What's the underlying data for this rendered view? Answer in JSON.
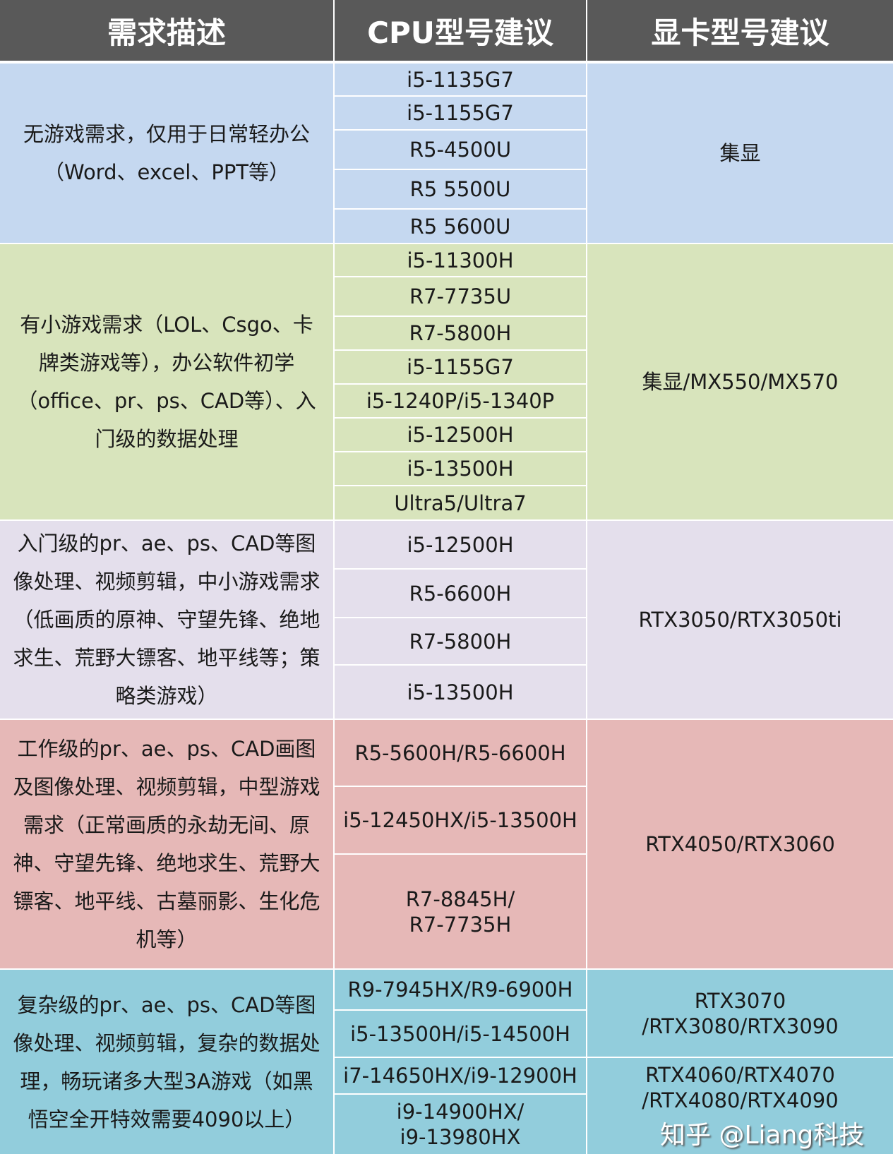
{
  "header": {
    "col1": "需求描述",
    "col2": "CPU型号建议",
    "col3": "显卡型号建议"
  },
  "colors": {
    "header": "#595959",
    "group1": "#c5d8f0",
    "group2": "#d8e4bc",
    "group3": "#e4dfec",
    "group4": "#e6b8b7",
    "group5": "#92cddc"
  },
  "groups": [
    {
      "desc": "无游戏需求，仅用于日常轻办公（Word、excel、PPT等）",
      "cpus": [
        "i5-1135G7",
        "i5-1155G7",
        "R5-4500U",
        "R5 5500U",
        "R5 5600U"
      ],
      "gpus": [
        "集显"
      ]
    },
    {
      "desc": "有小游戏需求（LOL、Csgo、卡牌类游戏等），办公软件初学（office、pr、ps、CAD等）、入门级的数据处理",
      "cpus": [
        "i5-11300H",
        "R7-7735U",
        "R7-5800H",
        "i5-1155G7",
        "i5-1240P/i5-1340P",
        "i5-12500H",
        "i5-13500H",
        "Ultra5/Ultra7"
      ],
      "gpus": [
        "集显/MX550/MX570"
      ]
    },
    {
      "desc": "入门级的pr、ae、ps、CAD等图像处理、视频剪辑，中小游戏需求（低画质的原神、守望先锋、绝地求生、荒野大镖客、地平线等；策略类游戏）",
      "cpus": [
        "i5-12500H",
        "R5-6600H",
        "R7-5800H",
        "i5-13500H"
      ],
      "gpus": [
        "RTX3050/RTX3050ti"
      ]
    },
    {
      "desc": "工作级的pr、ae、ps、CAD画图及图像处理、视频剪辑，中型游戏需求（正常画质的永劫无间、原神、守望先锋、绝地求生、荒野大镖客、地平线、古墓丽影、生化危机等）",
      "cpus": [
        "R5-5600H/R5-6600H",
        "i5-12450HX/i5-13500H",
        "R7-8845H/ R7-7735H"
      ],
      "gpus": [
        "RTX4050/RTX3060"
      ]
    },
    {
      "desc": "复杂级的pr、ae、ps、CAD等图像处理、视频剪辑，复杂的数据处理，畅玩诸多大型3A游戏（如黑悟空全开特效需要4090以上）",
      "cpus": [
        "R9-7945HX/R9-6900H",
        "i5-13500H/i5-14500H",
        "i7-14650HX/i9-12900H",
        "i9-14900HX/ i9-13980HX"
      ],
      "gpus": [
        "RTX3070 /RTX3080/RTX3090",
        "RTX4060/RTX4070 /RTX4080/RTX4090"
      ]
    }
  ],
  "watermark": "知乎 @Liang科技"
}
